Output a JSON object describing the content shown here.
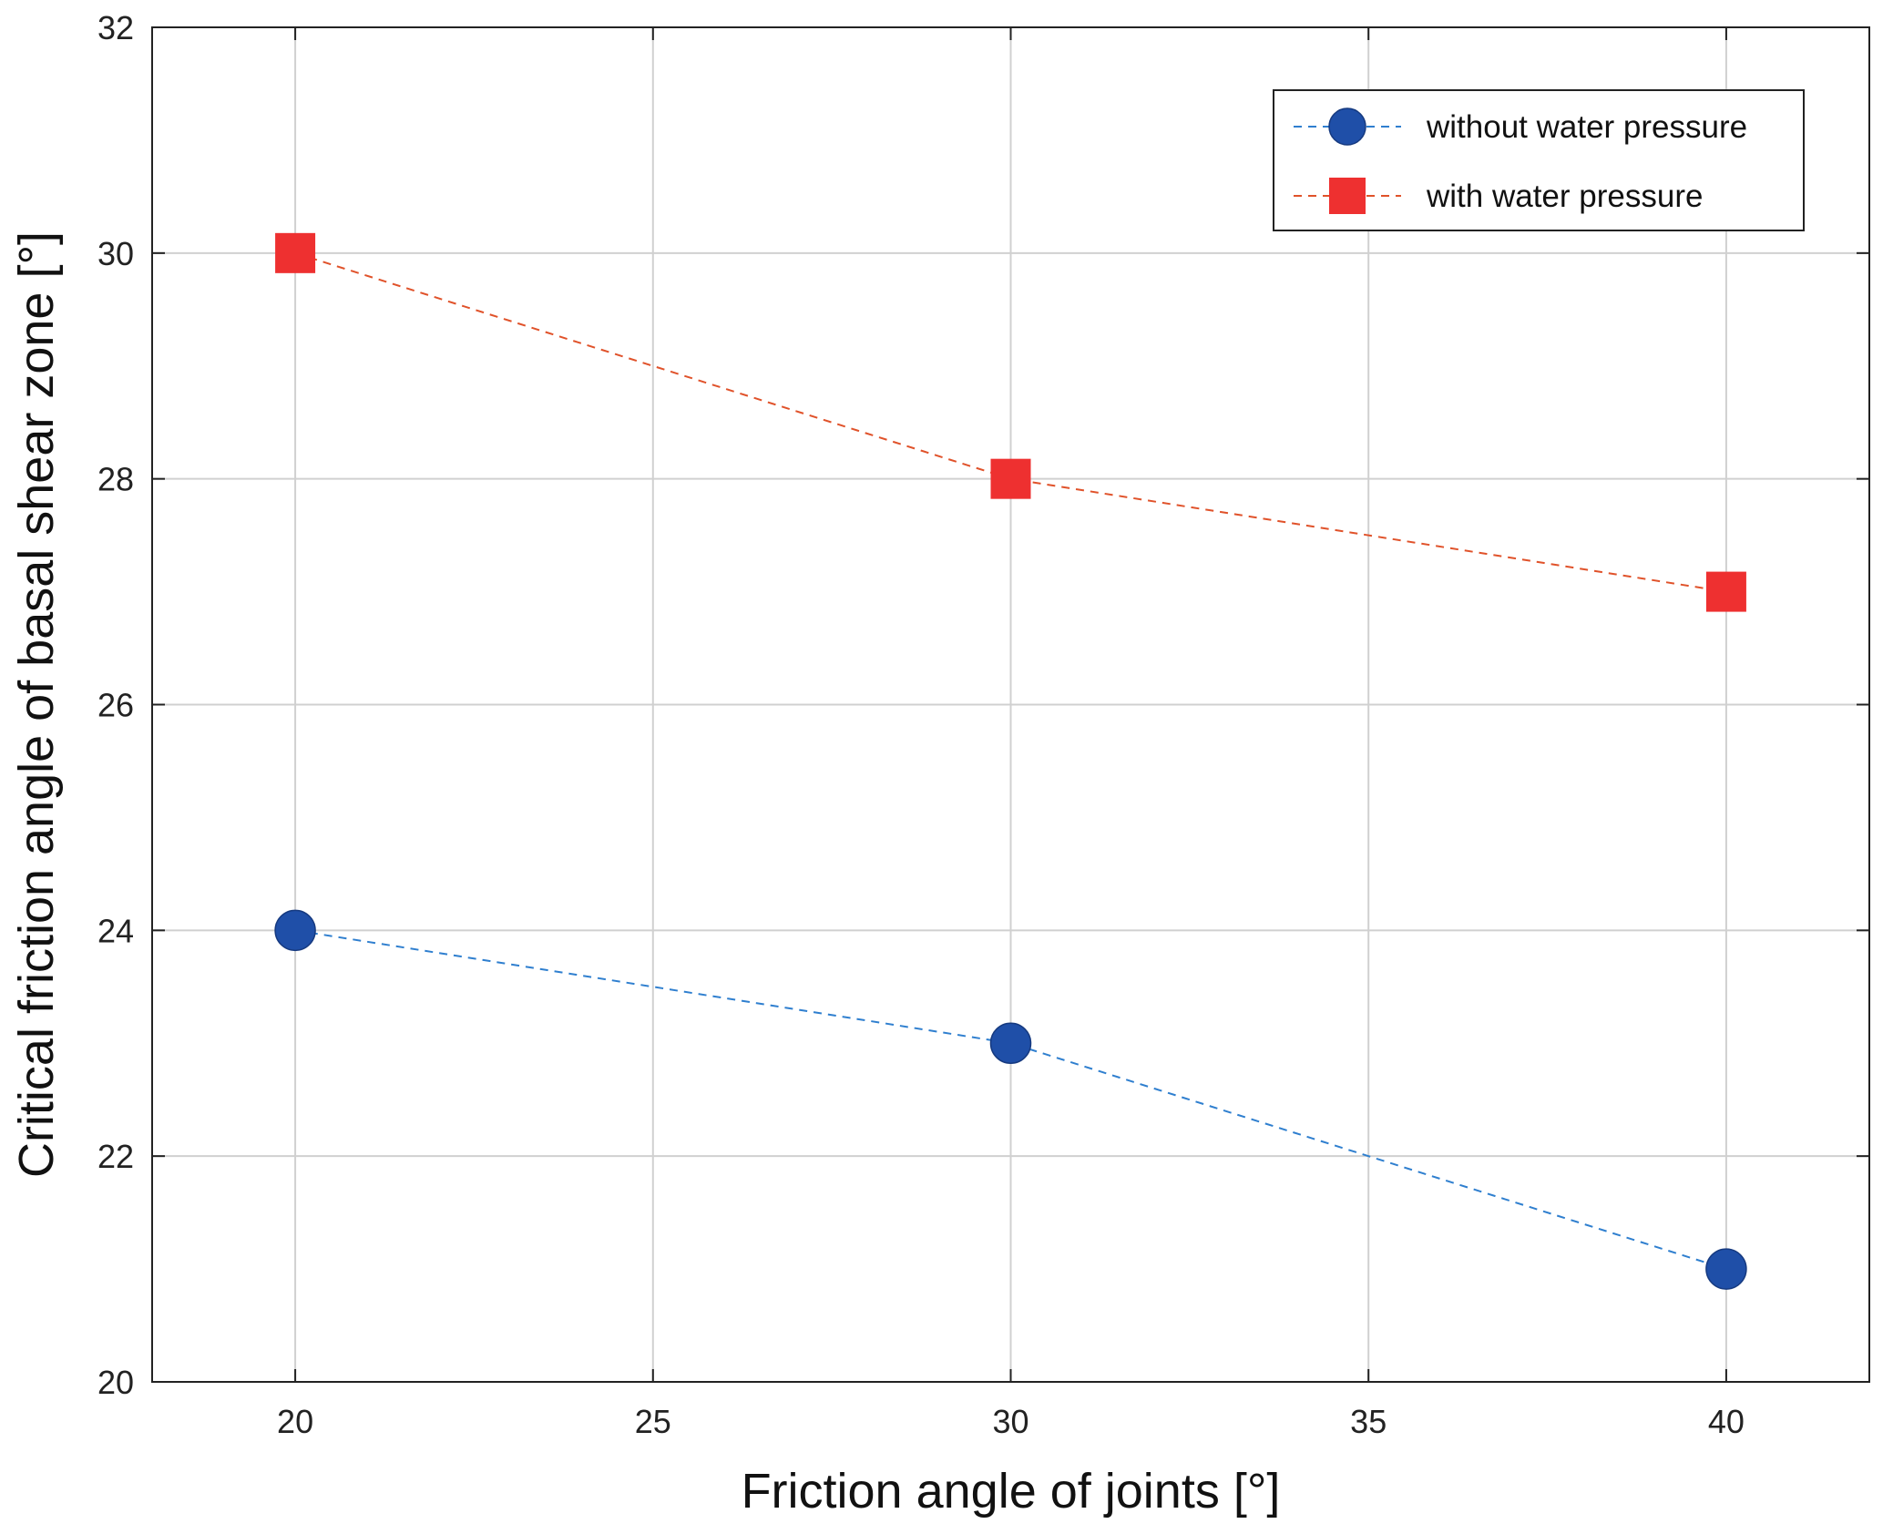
{
  "chart_data": {
    "type": "line",
    "title": "",
    "xlabel": "Friction angle of joints [°]",
    "ylabel": "Critical friction angle of basal shear zone [°]",
    "xlim": [
      18,
      42
    ],
    "ylim": [
      20,
      32
    ],
    "xticks": [
      20,
      25,
      30,
      35,
      40
    ],
    "yticks": [
      20,
      22,
      24,
      26,
      28,
      30,
      32
    ],
    "grid": true,
    "legend_position": "top-right",
    "series": [
      {
        "name": "without water pressure",
        "marker": "circle",
        "line_style": "dashed",
        "line_color": "#2f7fcf",
        "marker_color": "#1f4fa8",
        "x": [
          20,
          30,
          40
        ],
        "y": [
          24,
          23,
          21
        ]
      },
      {
        "name": "with water pressure",
        "marker": "square",
        "line_style": "dashed",
        "line_color": "#e0522a",
        "marker_color": "#ee3030",
        "x": [
          20,
          30,
          40
        ],
        "y": [
          30,
          28,
          27
        ]
      }
    ]
  }
}
